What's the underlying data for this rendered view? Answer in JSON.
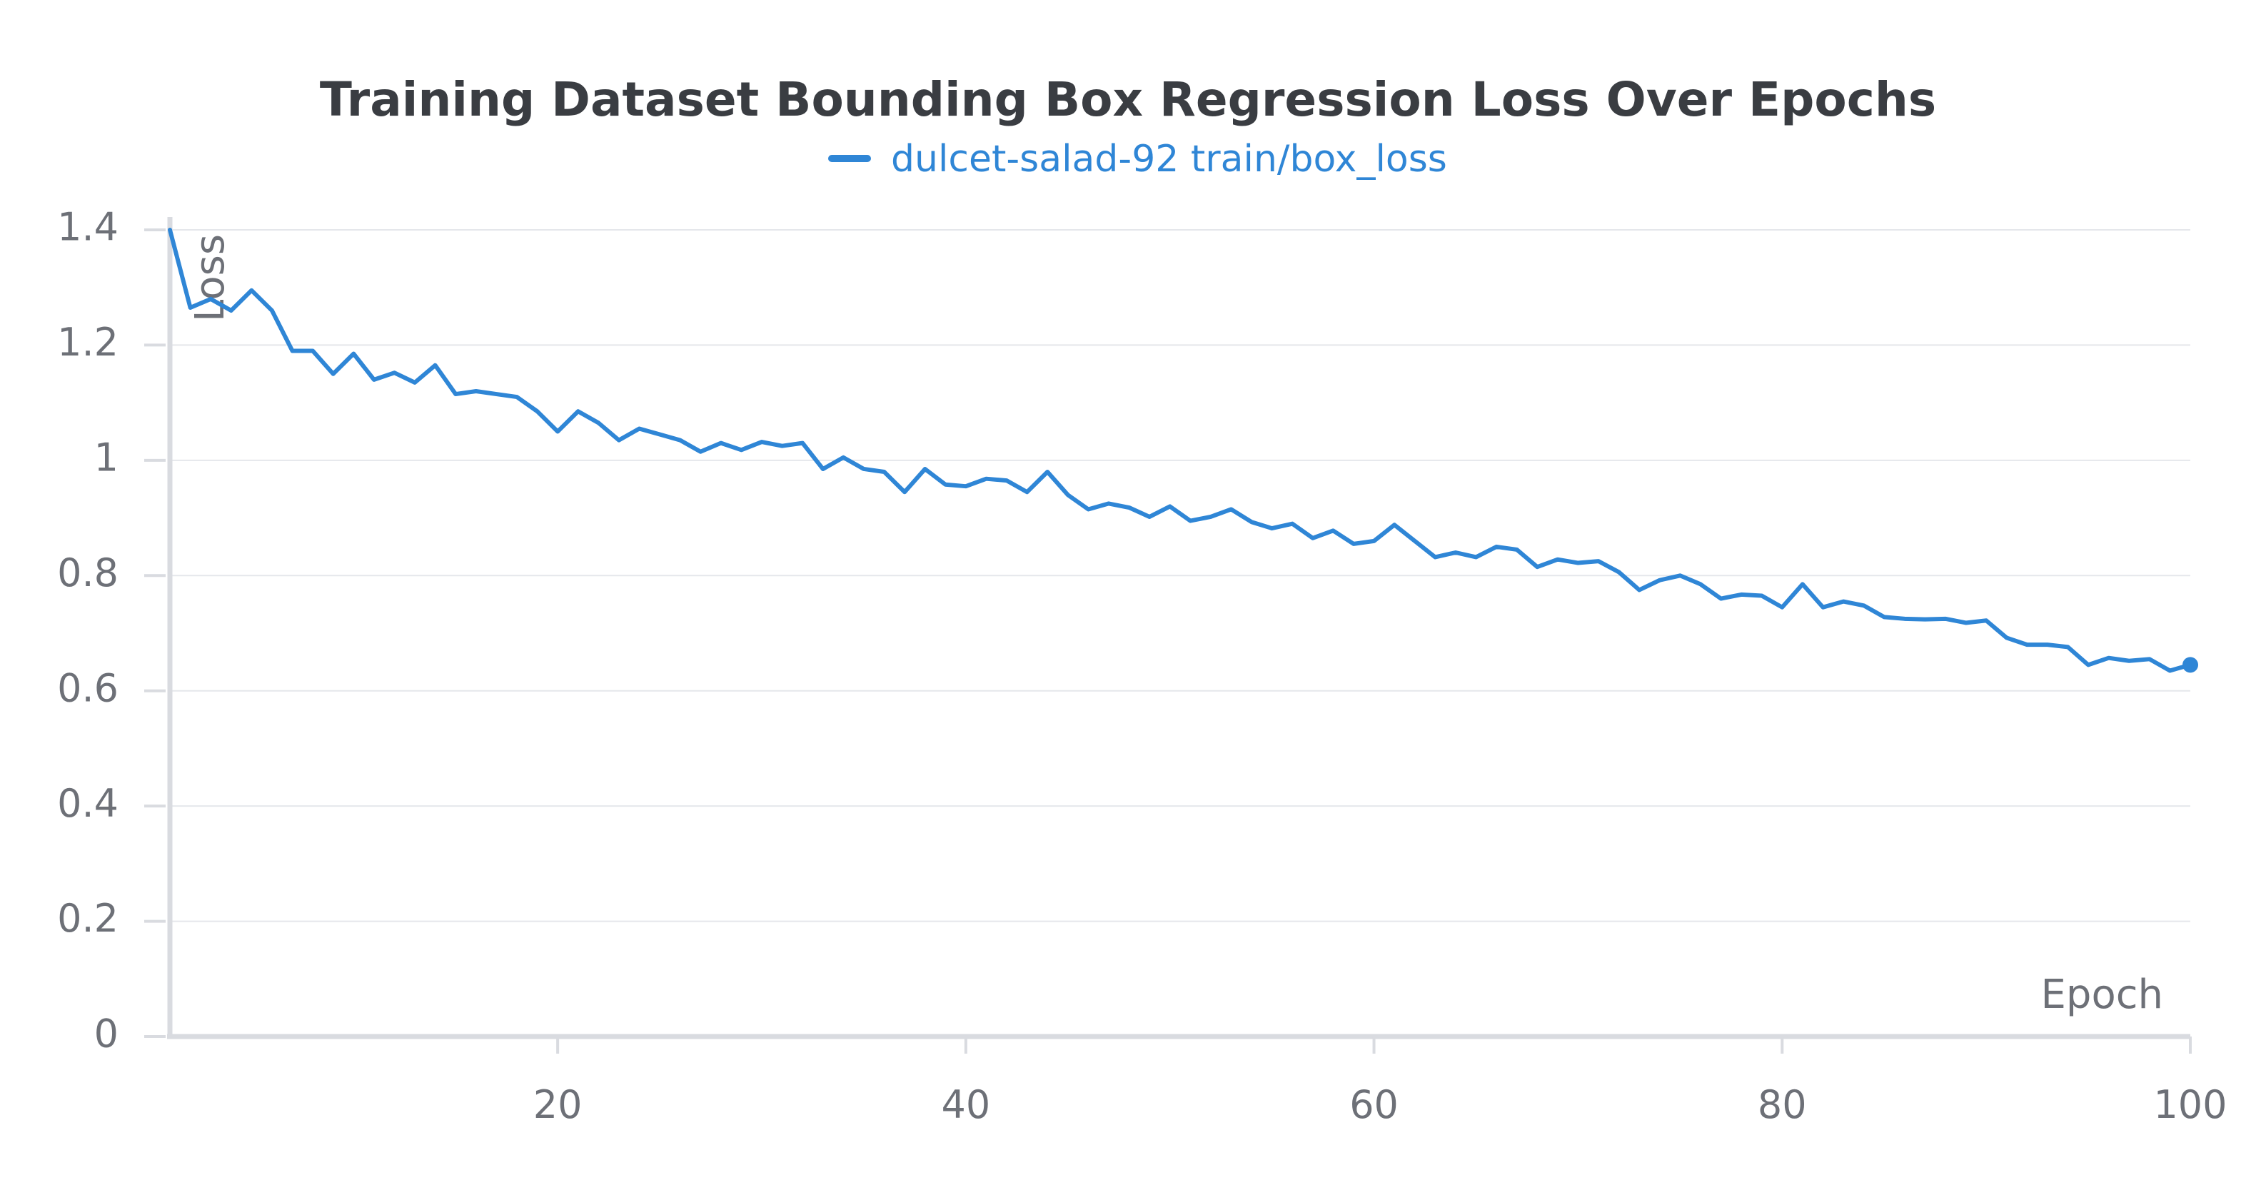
{
  "chart_data": {
    "type": "line",
    "title": "Training Dataset Bounding Box Regression Loss Over Epochs",
    "xlabel": "Epoch",
    "ylabel": "Loss",
    "xlim": [
      1,
      100
    ],
    "ylim": [
      0,
      1.4
    ],
    "x_ticks": [
      20,
      40,
      60,
      80,
      100
    ],
    "x_tick_labels": [
      "20",
      "40",
      "60",
      "80",
      "100"
    ],
    "y_ticks": [
      0,
      0.2,
      0.4,
      0.6,
      0.8,
      1.0,
      1.2,
      1.4
    ],
    "y_tick_labels": [
      "0",
      "0.2",
      "0.4",
      "0.6",
      "0.8",
      "1",
      "1.2",
      "1.4"
    ],
    "grid": true,
    "legend_position": "top-center",
    "colors": {
      "series": "#2f86d6",
      "grid": "#e5e7eb",
      "axis": "#d9dbe0"
    },
    "series": [
      {
        "name": "dulcet-salad-92 train/box_loss",
        "x": [
          1,
          2,
          3,
          4,
          5,
          6,
          7,
          8,
          9,
          10,
          11,
          12,
          13,
          14,
          15,
          16,
          17,
          18,
          19,
          20,
          21,
          22,
          23,
          24,
          25,
          26,
          27,
          28,
          29,
          30,
          31,
          32,
          33,
          34,
          35,
          36,
          37,
          38,
          39,
          40,
          41,
          42,
          43,
          44,
          45,
          46,
          47,
          48,
          49,
          50,
          51,
          52,
          53,
          54,
          55,
          56,
          57,
          58,
          59,
          60,
          61,
          62,
          63,
          64,
          65,
          66,
          67,
          68,
          69,
          70,
          71,
          72,
          73,
          74,
          75,
          76,
          77,
          78,
          79,
          80,
          81,
          82,
          83,
          84,
          85,
          86,
          87,
          88,
          89,
          90,
          91,
          92,
          93,
          94,
          95,
          96,
          97,
          98,
          99,
          100
        ],
        "values": [
          1.4,
          1.265,
          1.28,
          1.26,
          1.295,
          1.26,
          1.19,
          1.19,
          1.15,
          1.185,
          1.14,
          1.152,
          1.135,
          1.165,
          1.115,
          1.12,
          1.115,
          1.11,
          1.085,
          1.05,
          1.085,
          1.065,
          1.035,
          1.055,
          1.045,
          1.035,
          1.015,
          1.03,
          1.018,
          1.032,
          1.025,
          1.03,
          0.985,
          1.005,
          0.985,
          0.98,
          0.945,
          0.985,
          0.958,
          0.955,
          0.968,
          0.965,
          0.945,
          0.98,
          0.94,
          0.915,
          0.925,
          0.918,
          0.902,
          0.92,
          0.895,
          0.902,
          0.915,
          0.893,
          0.882,
          0.89,
          0.865,
          0.878,
          0.855,
          0.86,
          0.888,
          0.86,
          0.832,
          0.84,
          0.832,
          0.85,
          0.845,
          0.815,
          0.828,
          0.822,
          0.825,
          0.806,
          0.775,
          0.792,
          0.8,
          0.785,
          0.76,
          0.767,
          0.765,
          0.745,
          0.785,
          0.745,
          0.755,
          0.748,
          0.728,
          0.725,
          0.724,
          0.725,
          0.718,
          0.722,
          0.692,
          0.68,
          0.68,
          0.676,
          0.645,
          0.657,
          0.652,
          0.655,
          0.635,
          0.645
        ]
      }
    ]
  }
}
